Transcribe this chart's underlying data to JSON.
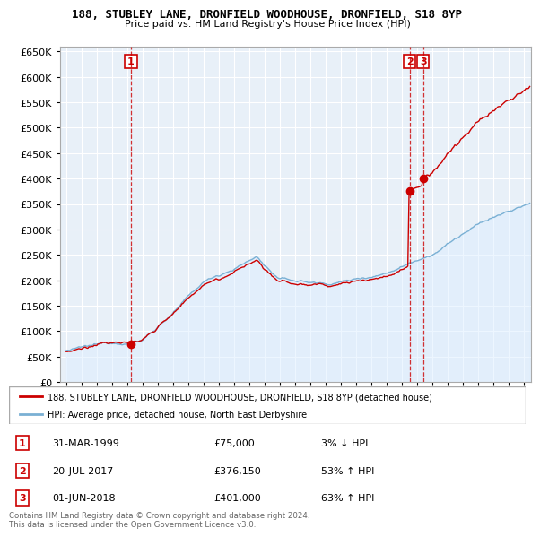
{
  "title": "188, STUBLEY LANE, DRONFIELD WOODHOUSE, DRONFIELD, S18 8YP",
  "subtitle": "Price paid vs. HM Land Registry's House Price Index (HPI)",
  "ylim": [
    0,
    660000
  ],
  "yticks": [
    0,
    50000,
    100000,
    150000,
    200000,
    250000,
    300000,
    350000,
    400000,
    450000,
    500000,
    550000,
    600000,
    650000
  ],
  "sales": [
    {
      "date_num": 1999.25,
      "price": 75000,
      "label": "1"
    },
    {
      "date_num": 2017.54,
      "price": 376150,
      "label": "2"
    },
    {
      "date_num": 2018.42,
      "price": 401000,
      "label": "3"
    }
  ],
  "sale_color": "#cc0000",
  "hpi_color": "#7ab0d4",
  "hpi_fill_color": "#ddeeff",
  "legend_sale": "188, STUBLEY LANE, DRONFIELD WOODHOUSE, DRONFIELD, S18 8YP (detached house)",
  "legend_hpi": "HPI: Average price, detached house, North East Derbyshire",
  "table": [
    {
      "num": "1",
      "date": "31-MAR-1999",
      "price": "£75,000",
      "vs_hpi": "3% ↓ HPI"
    },
    {
      "num": "2",
      "date": "20-JUL-2017",
      "price": "£376,150",
      "vs_hpi": "53% ↑ HPI"
    },
    {
      "num": "3",
      "date": "01-JUN-2018",
      "price": "£401,000",
      "vs_hpi": "63% ↑ HPI"
    }
  ],
  "footnote": "Contains HM Land Registry data © Crown copyright and database right 2024.\nThis data is licensed under the Open Government Licence v3.0.",
  "background_color": "#ffffff",
  "grid_color": "#cccccc",
  "xlim_left": 1994.6,
  "xlim_right": 2025.5
}
